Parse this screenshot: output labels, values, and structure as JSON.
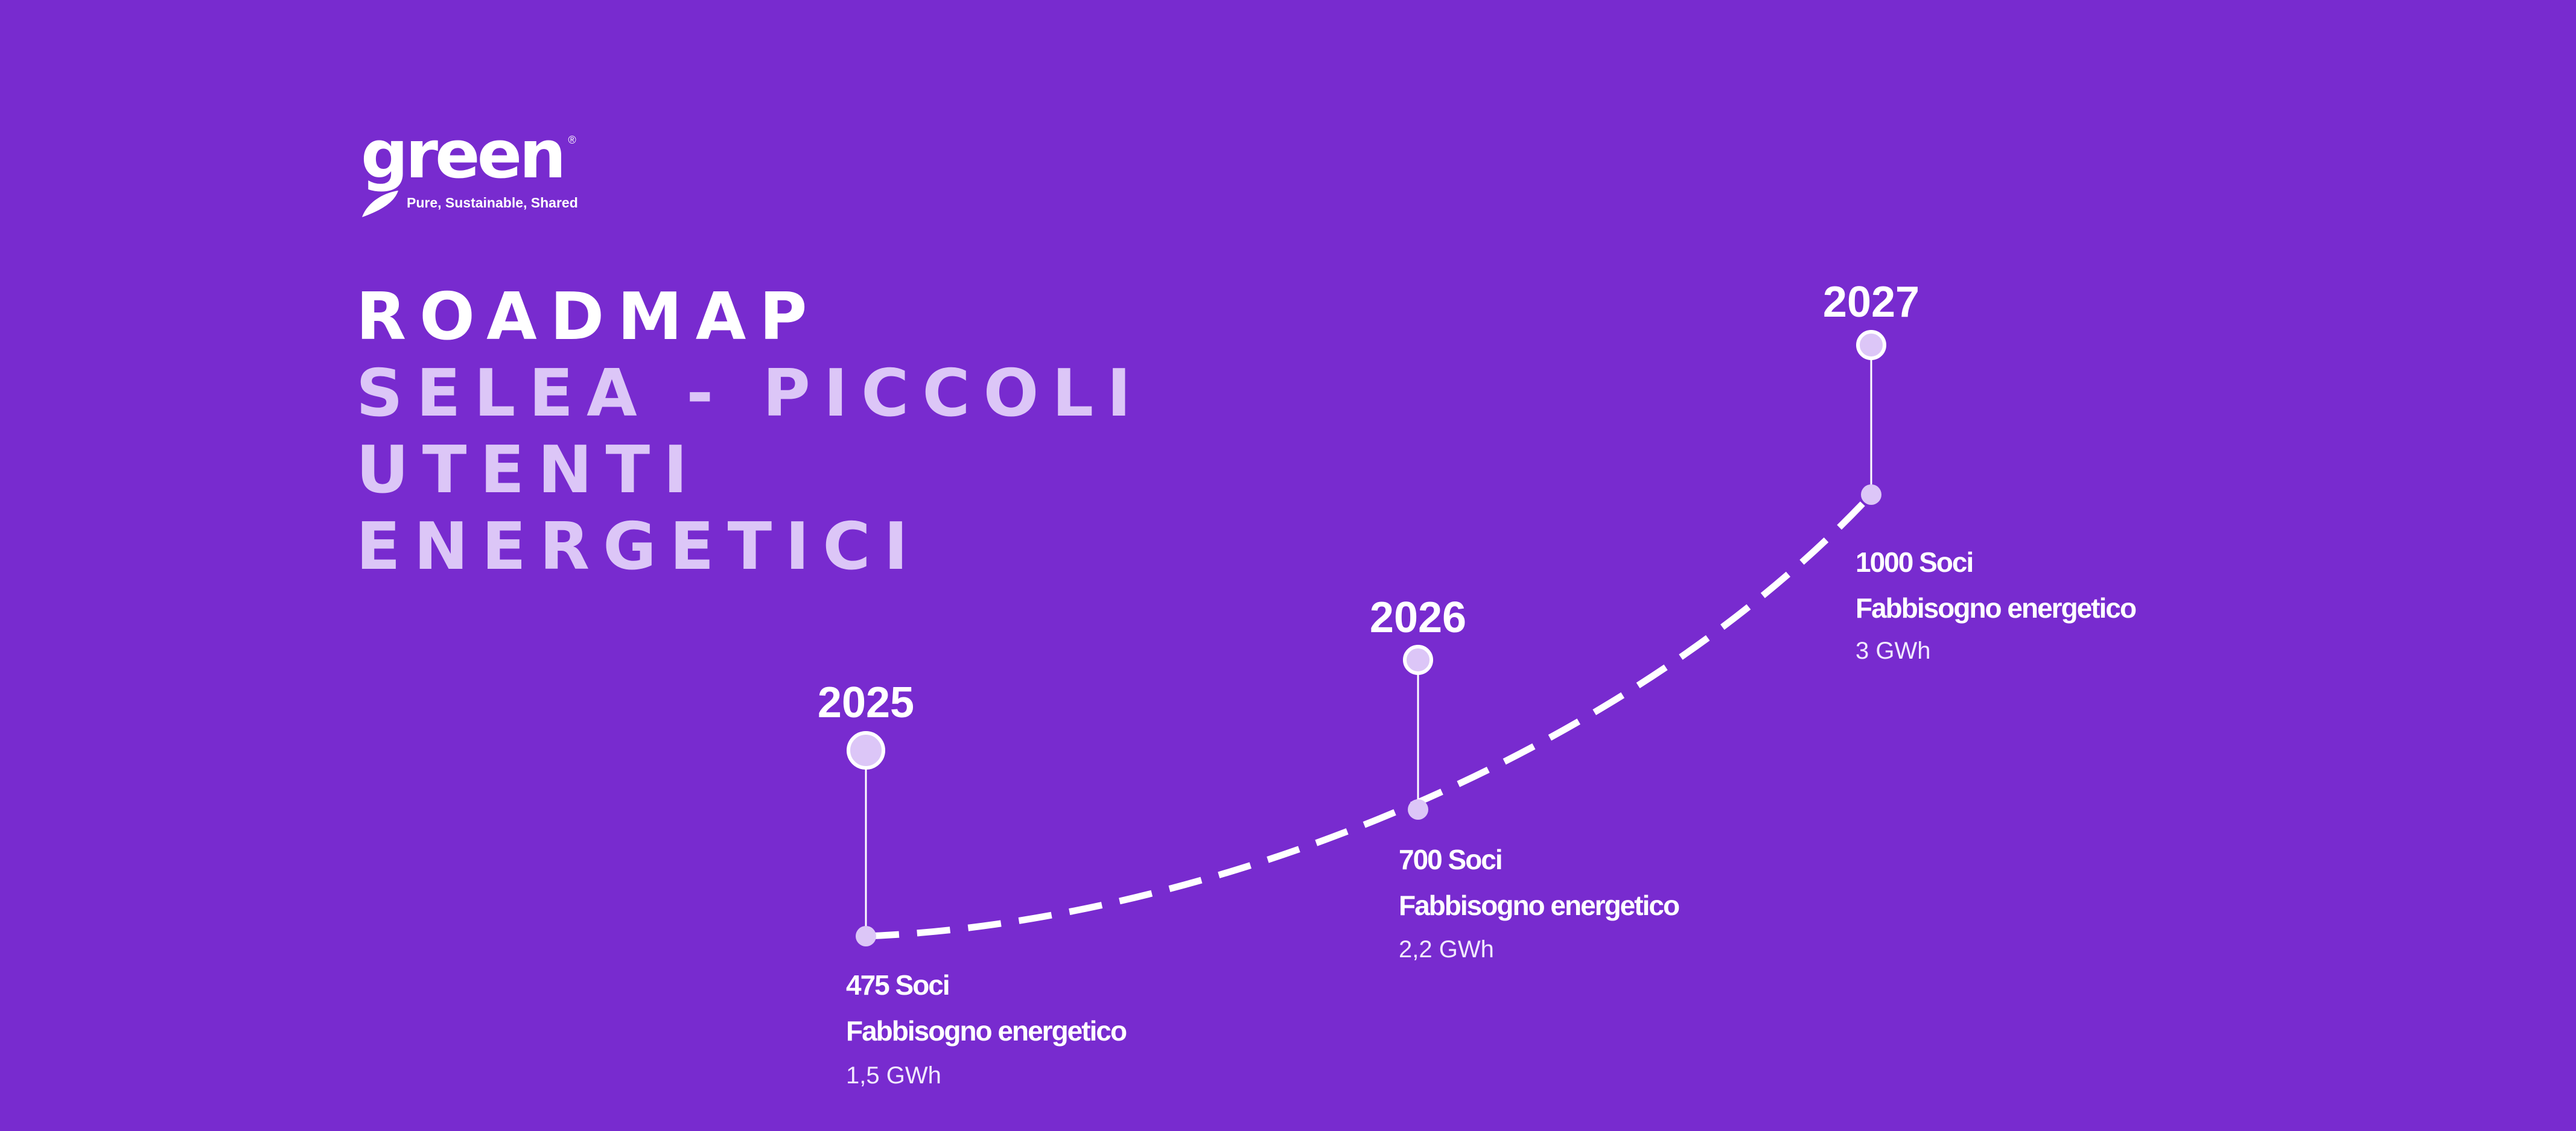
{
  "logo": {
    "word": "green",
    "registered": "®",
    "tagline": "Pure, Sustainable, Shared"
  },
  "title": {
    "line1": "ROADMAP",
    "line2": "SELEA - PICCOLI",
    "line3": "UTENTI",
    "line4": "ENERGETICI"
  },
  "milestones": [
    {
      "year": "2025",
      "members": "475 Soci",
      "label": "Fabbisogno energetico",
      "energy": "1,5 GWh"
    },
    {
      "year": "2026",
      "members": "700 Soci",
      "label": "Fabbisogno energetico",
      "energy": "2,2 GWh"
    },
    {
      "year": "2027",
      "members": "1000 Soci",
      "label": "Fabbisogno energetico",
      "energy": "3 GWh"
    }
  ],
  "colors": {
    "background": "#782bcf",
    "accent": "#dcc6f7",
    "text": "#ffffff"
  }
}
